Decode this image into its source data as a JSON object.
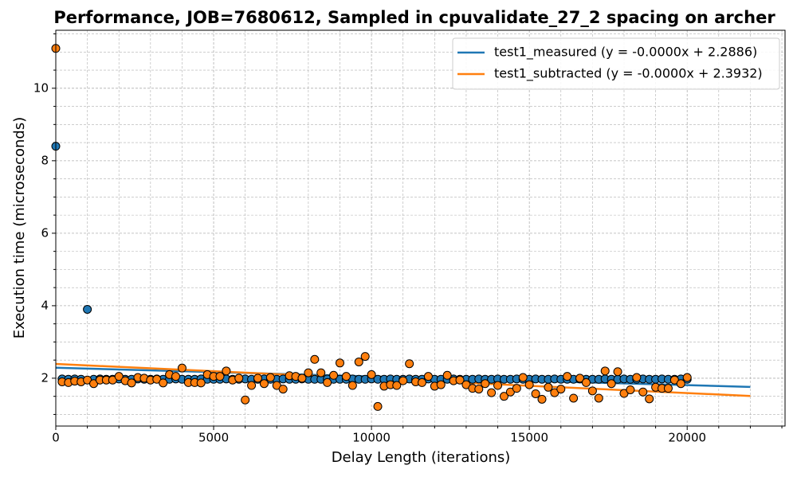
{
  "chart_data": {
    "type": "scatter",
    "title": "Performance, JOB=7680612, Sampled in cpuvalidate_27_2 spacing on archer",
    "xlabel": "Delay Length (iterations)",
    "ylabel": "Execution time (microseconds)",
    "xlim": [
      0,
      23100
    ],
    "ylim": [
      0.68,
      11.6
    ],
    "xticks": [
      0,
      5000,
      10000,
      15000,
      20000
    ],
    "yticks": [
      2,
      4,
      6,
      8,
      10
    ],
    "xminor": [
      1000,
      2000,
      3000,
      4000,
      6000,
      7000,
      8000,
      9000,
      11000,
      12000,
      13000,
      14000,
      16000,
      17000,
      18000,
      19000,
      21000,
      22000,
      23000
    ],
    "yminor": [
      1,
      1.5,
      2.5,
      3,
      3.5,
      4.5,
      5,
      5.5,
      6.5,
      7,
      7.5,
      8.5,
      9,
      9.5,
      10.5,
      11,
      11.5
    ],
    "grid": true,
    "legend": "upper right",
    "x": [
      0,
      200,
      400,
      600,
      800,
      1000,
      1200,
      1400,
      1600,
      1800,
      2000,
      2200,
      2400,
      2600,
      2800,
      3000,
      3200,
      3400,
      3600,
      3800,
      4000,
      4200,
      4400,
      4600,
      4800,
      5000,
      5200,
      5400,
      5600,
      5800,
      6000,
      6200,
      6400,
      6600,
      6800,
      7000,
      7200,
      7400,
      7600,
      7800,
      8000,
      8200,
      8400,
      8600,
      8800,
      9000,
      9200,
      9400,
      9600,
      9800,
      10000,
      10200,
      10400,
      10600,
      10800,
      11000,
      11200,
      11400,
      11600,
      11800,
      12000,
      12200,
      12400,
      12600,
      12800,
      13000,
      13200,
      13400,
      13600,
      13800,
      14000,
      14200,
      14400,
      14600,
      14800,
      15000,
      15200,
      15400,
      15600,
      15800,
      16000,
      16200,
      16400,
      16600,
      16800,
      17000,
      17200,
      17400,
      17600,
      17800,
      18000,
      18200,
      18400,
      18600,
      18800,
      19000,
      19200,
      19400,
      19600,
      19800,
      20000
    ],
    "series": [
      {
        "type": "line",
        "name": "test1_measured (y = -0.0000x + 2.2886)",
        "color": "#1f77b4",
        "x": [
          0,
          22000
        ],
        "values": [
          2.2886,
          1.76
        ]
      },
      {
        "type": "line",
        "name": "test1_subtracted (y = -0.0000x + 2.3932)",
        "color": "#ff7f0e",
        "x": [
          0,
          22000
        ],
        "values": [
          2.3932,
          1.51
        ]
      },
      {
        "type": "scatter",
        "color": "#1f77b4",
        "values": [
          8.4,
          1.98,
          1.97,
          1.98,
          1.97,
          3.9,
          1.97,
          1.98,
          1.97,
          1.97,
          1.98,
          1.97,
          1.97,
          1.98,
          1.97,
          1.97,
          1.98,
          1.97,
          1.97,
          1.98,
          1.97,
          1.97,
          1.97,
          1.98,
          1.97,
          1.97,
          1.97,
          1.98,
          1.97,
          1.97,
          1.98,
          1.97,
          1.97,
          1.98,
          1.97,
          1.97,
          1.98,
          1.97,
          1.97,
          1.98,
          1.97,
          1.97,
          1.97,
          1.98,
          1.97,
          1.97,
          1.97,
          1.98,
          1.97,
          1.97,
          1.98,
          1.97,
          1.97,
          1.98,
          1.97,
          1.97,
          1.98,
          1.97,
          1.97,
          1.98,
          1.97,
          1.97,
          1.97,
          1.98,
          1.97,
          1.97,
          1.97,
          1.98,
          1.97,
          1.97,
          1.98,
          1.97,
          1.97,
          1.98,
          1.97,
          1.97,
          1.98,
          1.97,
          1.97,
          1.98,
          1.97,
          1.97,
          1.97,
          1.98,
          1.97,
          1.97,
          1.97,
          1.98,
          1.97,
          1.97,
          1.98,
          1.97,
          1.97,
          1.98,
          1.97,
          1.97,
          1.98,
          1.97,
          1.97,
          1.98,
          1.97
        ]
      },
      {
        "type": "scatter",
        "color": "#ff7f0e",
        "values": [
          11.1,
          1.9,
          1.88,
          1.92,
          1.9,
          1.95,
          1.85,
          1.95,
          1.95,
          1.95,
          2.05,
          1.93,
          1.87,
          2.02,
          2.0,
          1.95,
          1.97,
          1.87,
          2.1,
          2.05,
          2.28,
          1.88,
          1.88,
          1.87,
          2.1,
          2.05,
          2.05,
          2.2,
          1.95,
          2.0,
          1.4,
          1.8,
          2.0,
          1.85,
          2.02,
          1.8,
          1.7,
          2.07,
          2.05,
          2.0,
          2.15,
          2.52,
          2.15,
          1.88,
          2.08,
          2.42,
          2.05,
          1.8,
          2.45,
          2.6,
          2.1,
          1.22,
          1.78,
          1.82,
          1.8,
          1.93,
          2.4,
          1.9,
          1.88,
          2.05,
          1.78,
          1.82,
          2.08,
          1.93,
          1.95,
          1.82,
          1.72,
          1.7,
          1.85,
          1.6,
          1.8,
          1.5,
          1.62,
          1.72,
          2.02,
          1.82,
          1.57,
          1.42,
          1.75,
          1.6,
          1.7,
          2.05,
          1.45,
          2.0,
          1.88,
          1.65,
          1.45,
          2.2,
          1.85,
          2.18,
          1.58,
          1.68,
          2.02,
          1.62,
          1.43,
          1.75,
          1.72,
          1.72,
          1.95,
          1.85,
          2.02
        ]
      }
    ]
  }
}
